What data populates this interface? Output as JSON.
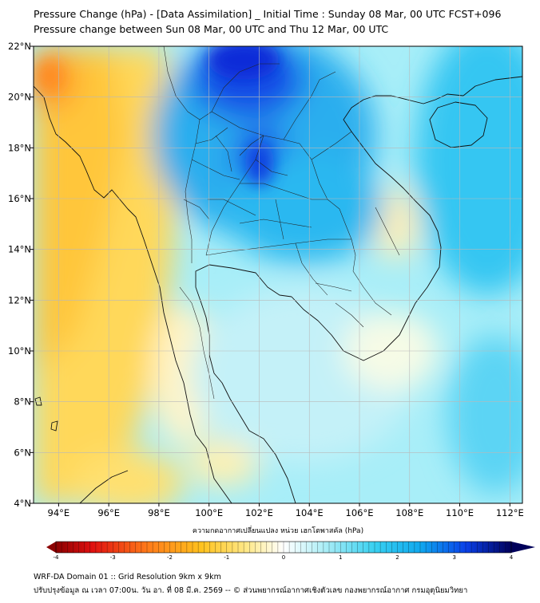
{
  "title_line1": "Pressure Change (hPa) - [Data Assimilation] _ Initial Time : Sunday 08 Mar, 00 UTC FCST+096",
  "title_line2": "Pressure change between Sun 08 Mar, 00 UTC and Thu 12 Mar, 00 UTC",
  "map": {
    "lon_range": [
      93,
      112.5
    ],
    "lat_range": [
      4,
      22
    ],
    "lon_ticks": [
      94,
      96,
      98,
      100,
      102,
      104,
      106,
      108,
      110,
      112
    ],
    "lat_ticks": [
      4,
      6,
      8,
      10,
      12,
      14,
      16,
      18,
      20,
      22
    ],
    "lon_labels": [
      "94°E",
      "96°E",
      "98°E",
      "100°E",
      "102°E",
      "104°E",
      "106°E",
      "108°E",
      "110°E",
      "112°E"
    ],
    "lat_labels": [
      "4°N",
      "6°N",
      "8°N",
      "10°N",
      "12°N",
      "14°N",
      "16°N",
      "18°N",
      "20°N",
      "22°N"
    ],
    "grid": true
  },
  "colorbar": {
    "title": "ความกดอากาศเปลี่ยนแปลง หน่วย เฮกโตพาสคัล (hPa)",
    "range": [
      -4,
      4
    ],
    "labels": [
      "-4",
      "-3",
      "-2",
      "-1",
      "0",
      "1",
      "2",
      "3",
      "4"
    ],
    "low_color": "#8b0000",
    "high_color": "#00005a"
  },
  "footer_line1": "WRF-DA Domain 01 :: Grid Resolution 9km x 9km",
  "footer_line2": "ปรับปรุงข้อมูล ณ เวลา 07:00น. วัน อา. ที่ 08 มี.ค. 2569 -- © ส่วนพยากรณ์อากาศเชิงตัวเลข กองพยากรณ์อากาศ กรมอุตุนิยมวิทยา"
}
